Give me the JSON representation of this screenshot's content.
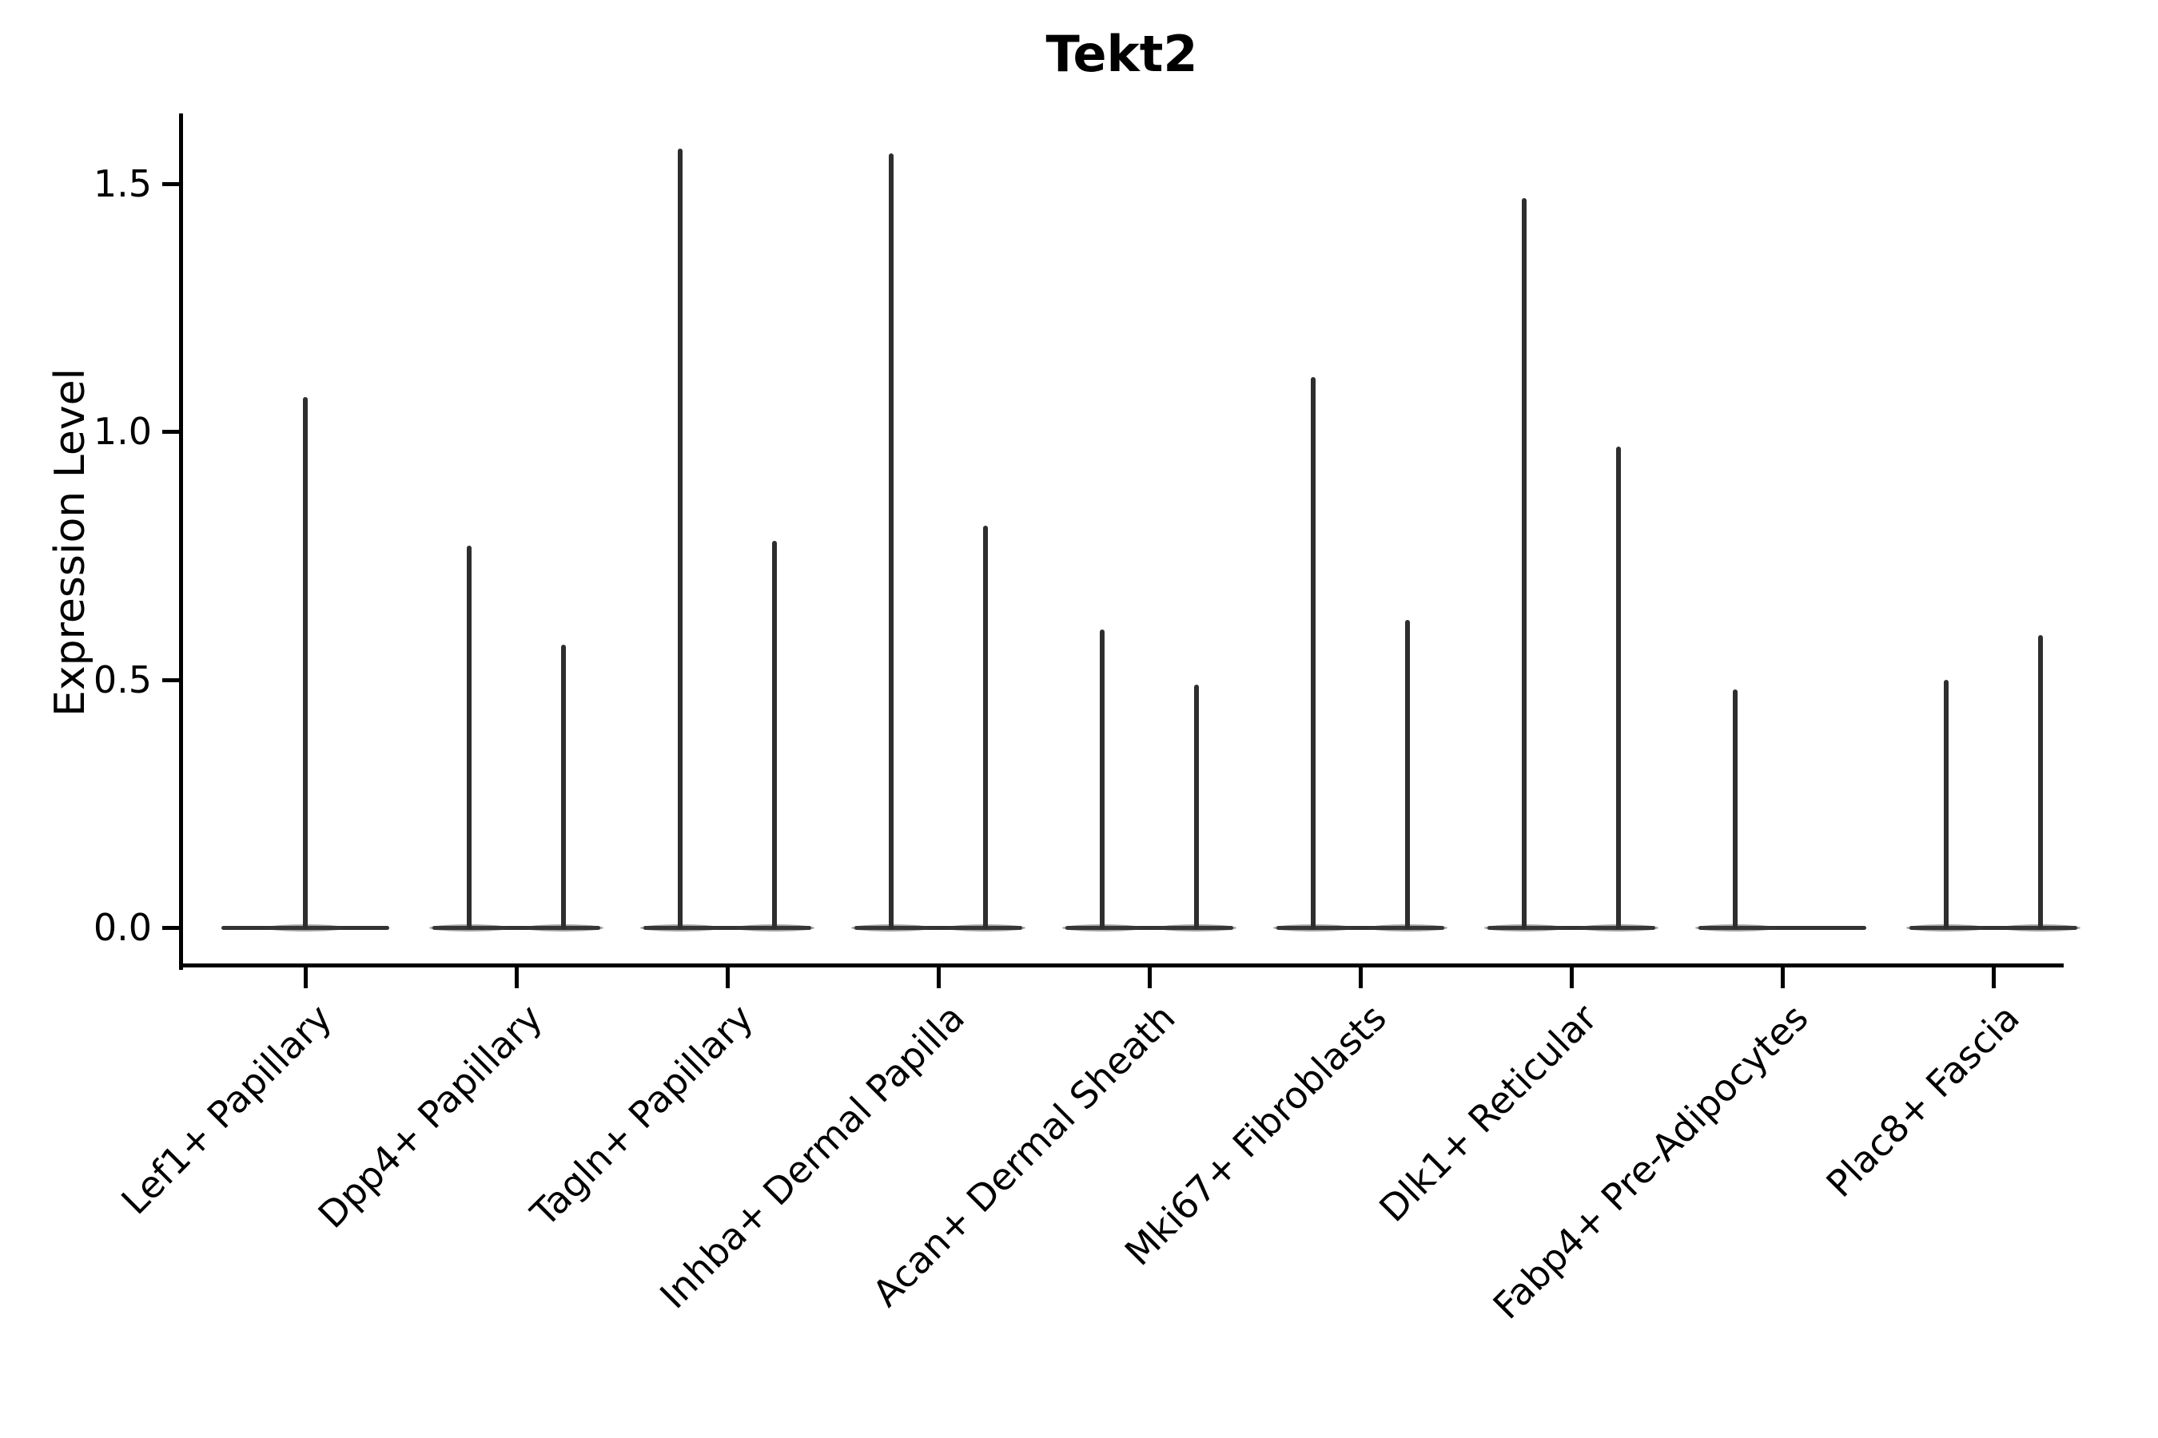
{
  "title": "Tekt2",
  "y_axis": {
    "label": "Expression Level",
    "ticks": [
      {
        "label": "0.0",
        "value": 0.0
      },
      {
        "label": "0.5",
        "value": 0.5
      },
      {
        "label": "1.0",
        "value": 1.0
      },
      {
        "label": "1.5",
        "value": 1.5
      }
    ]
  },
  "chart_data": {
    "type": "violin",
    "title": "Tekt2",
    "xlabel": "",
    "ylabel": "Expression Level",
    "ylim": [
      -0.08,
      1.64
    ],
    "ytick_values": [
      0.0,
      0.5,
      1.0,
      1.5
    ],
    "grid": false,
    "legend": "none",
    "description": "Collapsed violin plot (sparse expression): each cell-type slot shows a flat density baseline at 0 with thin vertical spikes rising to the maximum expression of each violin; slots with two spikes contain a left and right violin pair.",
    "categories": [
      "Lef1+ Papillary",
      "Dpp4+ Papillary",
      "Tagln+ Papillary",
      "Inhba+ Dermal Papilla",
      "Acan+ Dermal Sheath",
      "Mki67+ Fibroblasts",
      "Dlk1+ Reticular",
      "Fabp4+ Pre-Adipocytes",
      "Plac8+ Fascia"
    ],
    "violins": [
      {
        "category": "Lef1+ Papillary",
        "spikes": [
          {
            "position": "center",
            "max": 1.07
          }
        ]
      },
      {
        "category": "Dpp4+ Papillary",
        "spikes": [
          {
            "position": "left",
            "max": 0.77
          },
          {
            "position": "right",
            "max": 0.57
          }
        ]
      },
      {
        "category": "Tagln+ Papillary",
        "spikes": [
          {
            "position": "left",
            "max": 1.57
          },
          {
            "position": "right",
            "max": 0.78
          }
        ]
      },
      {
        "category": "Inhba+ Dermal Papilla",
        "spikes": [
          {
            "position": "left",
            "max": 1.56
          },
          {
            "position": "right",
            "max": 0.81
          }
        ]
      },
      {
        "category": "Acan+ Dermal Sheath",
        "spikes": [
          {
            "position": "left",
            "max": 0.6
          },
          {
            "position": "right",
            "max": 0.49
          }
        ]
      },
      {
        "category": "Mki67+ Fibroblasts",
        "spikes": [
          {
            "position": "left",
            "max": 1.11
          },
          {
            "position": "right",
            "max": 0.62
          }
        ]
      },
      {
        "category": "Dlk1+ Reticular",
        "spikes": [
          {
            "position": "left",
            "max": 1.47
          },
          {
            "position": "right",
            "max": 0.97
          }
        ]
      },
      {
        "category": "Fabp4+ Pre-Adipocytes",
        "spikes": [
          {
            "position": "left",
            "max": 0.48
          }
        ]
      },
      {
        "category": "Plac8+ Fascia",
        "spikes": [
          {
            "position": "left",
            "max": 0.5
          },
          {
            "position": "right",
            "max": 0.59
          }
        ]
      }
    ]
  },
  "style": {
    "background_color": "#ffffff",
    "axis_color": "#000000",
    "violin_line_color": "#2e2e2e",
    "baseline_color": "#333333",
    "text_color": "#000000"
  }
}
